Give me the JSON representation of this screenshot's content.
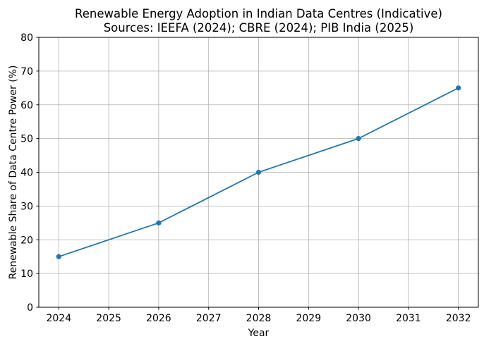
{
  "figure": {
    "background": "#ffffff"
  },
  "chart_data": {
    "type": "line",
    "title": "Renewable Energy Adoption in Indian Data Centres (Indicative)",
    "subtitle": "Sources: IEEFA (2024); CBRE (2024); PIB India (2025)",
    "xlabel": "Year",
    "ylabel": "Renewable Share of Data Centre Power (%)",
    "x": [
      2024,
      2026,
      2028,
      2030,
      2032
    ],
    "y": [
      15,
      25,
      40,
      50,
      65
    ],
    "xticks": [
      2024,
      2025,
      2026,
      2027,
      2028,
      2029,
      2030,
      2031,
      2032
    ],
    "yticks": [
      0,
      10,
      20,
      30,
      40,
      50,
      60,
      70,
      80
    ],
    "xlim": [
      2023.6,
      2032.4
    ],
    "ylim": [
      0,
      80
    ],
    "grid": true,
    "legend": "none",
    "line_color": "#1f77b4",
    "marker": "o",
    "grid_color": "#b0b0b0",
    "axis_color": "#000000",
    "text_color": "#000000"
  }
}
